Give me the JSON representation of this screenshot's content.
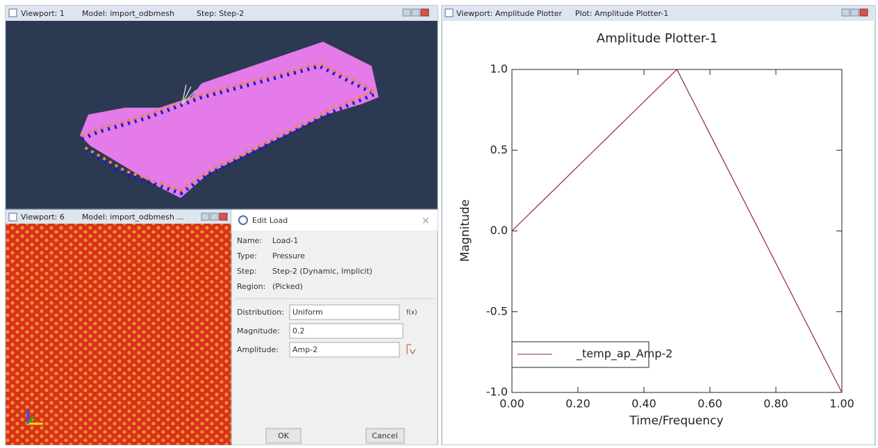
{
  "viewport_1": {
    "title": "Viewport: 1",
    "model": "Model: import_odbmesh",
    "step": "Step: Step-2"
  },
  "viewport_6": {
    "title": "Viewport: 6",
    "model": "Model: import_odbmesh ..."
  },
  "edit_load": {
    "title": "Edit Load",
    "fields": [
      {
        "label": "Name:",
        "value": "Load-1"
      },
      {
        "label": "Type:",
        "value": "Pressure"
      },
      {
        "label": "Step:",
        "value": "Step-2 (Dynamic, Implicit)"
      },
      {
        "label": "Region:",
        "value": "(Picked)"
      }
    ],
    "distribution": {
      "label": "Distribution:",
      "value": "Uniform",
      "button": "f(x)"
    },
    "magnitude": {
      "label": "Magnitude:",
      "value": 0.2
    },
    "amplitude": {
      "label": "Amplitude:",
      "value": "Amp-2"
    },
    "buttons": [
      "OK",
      "Cancel"
    ]
  },
  "plot_viewport": {
    "title": "Viewport: Amplitude Plotter",
    "plot": "Plot: Amplitude Plotter-1"
  },
  "chart_data": {
    "type": "line",
    "title": "Amplitude Plotter-1",
    "x_label": "Time/Frequency",
    "y_label": "Magnitude",
    "x": [
      0,
      0.5,
      1
    ],
    "series": [
      {
        "name": "_temp_ap_Amp-2",
        "color": "#8b2a2a",
        "values": [
          0,
          1,
          -1
        ]
      }
    ],
    "xlim": [
      0,
      1
    ],
    "ylim": [
      -1,
      1
    ],
    "xticks": [
      {
        "value": 0,
        "label": "0.00"
      },
      {
        "value": 0.2,
        "label": "0.20"
      },
      {
        "value": 0.4,
        "label": "0.40"
      },
      {
        "value": 0.6,
        "label": "0.60"
      },
      {
        "value": 0.8,
        "label": "0.80"
      },
      {
        "value": 1,
        "label": "1.00"
      }
    ],
    "yticks": [
      {
        "value": -1,
        "label": "-1.0"
      },
      {
        "value": -0.5,
        "label": "-0.5"
      },
      {
        "value": 0,
        "label": "0.0"
      },
      {
        "value": 0.5,
        "label": "0.5"
      },
      {
        "value": 1,
        "label": "1.0"
      }
    ],
    "grid": false,
    "legend": "lower-left"
  }
}
